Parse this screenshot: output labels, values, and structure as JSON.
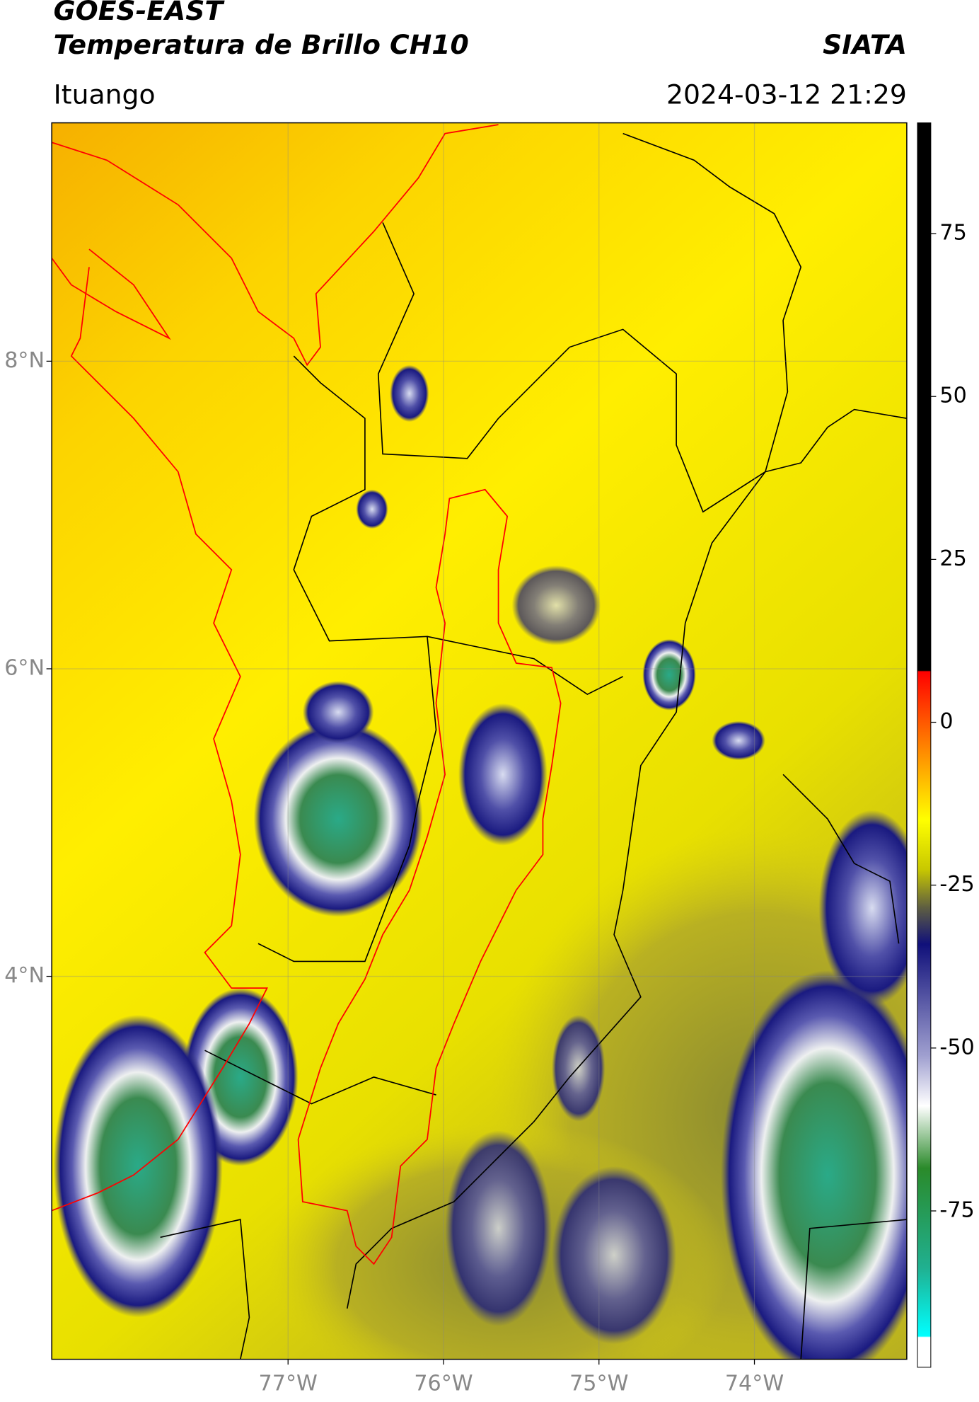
{
  "header": {
    "satellite": "GOES-EAST",
    "product": "Temperatura de Brillo CH10",
    "agency": "SIATA",
    "location": "Ituango",
    "datetime": "2024-03-12 21:29"
  },
  "map": {
    "xlim": [
      -78.52,
      -73.02
    ],
    "ylim": [
      1.51,
      9.55
    ],
    "xticks": [
      {
        "value": -77,
        "label": "77°W"
      },
      {
        "value": -76,
        "label": "76°W"
      },
      {
        "value": -75,
        "label": "75°W"
      },
      {
        "value": -74,
        "label": "74°W"
      }
    ],
    "yticks": [
      {
        "value": 8,
        "label": "8°N"
      },
      {
        "value": 6,
        "label": "6°N"
      },
      {
        "value": 4,
        "label": "4°N"
      }
    ]
  },
  "colorbar": {
    "lim": [
      -99,
      92
    ],
    "ticks": [
      75,
      50,
      25,
      0,
      -25,
      -50,
      -75
    ]
  }
}
